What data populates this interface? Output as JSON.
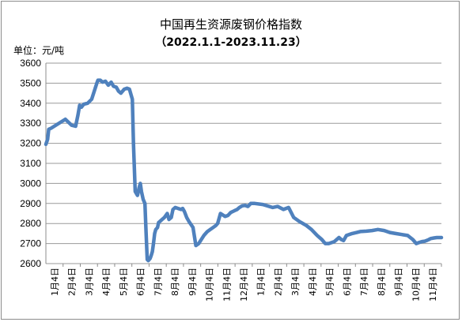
{
  "chart_data": {
    "type": "line",
    "title": "中国再生资源废钢价格指数",
    "subtitle": "（2022.1.1-2023.11.23）",
    "unit_label": "单位：元/吨",
    "ylim": [
      2600,
      3600
    ],
    "y_ticks": [
      "3600",
      "3500",
      "3400",
      "3300",
      "3200",
      "3100",
      "3000",
      "2900",
      "2800",
      "2700",
      "2600"
    ],
    "x_ticks": [
      "1月4日",
      "2月4日",
      "3月4日",
      "4月4日",
      "5月4日",
      "6月4日",
      "7月4日",
      "8月4日",
      "9月4日",
      "10月4日",
      "11月4日",
      "12月4日",
      "1月4日",
      "2月4日",
      "3月4日",
      "4月4日",
      "5月4日",
      "6月4日",
      "7月4日",
      "8月4日",
      "9月4日",
      "10月4日",
      "11月4日"
    ],
    "grid": true,
    "legend": "none",
    "line_color": "#4f81bd",
    "series": [
      {
        "x": [
          "2022-01-01",
          "2022-01-04",
          "2022-01-06",
          "2022-01-10",
          "2022-02-04",
          "2022-02-15",
          "2022-02-22",
          "2022-02-26",
          "2022-03-01",
          "2022-03-04",
          "2022-03-08",
          "2022-03-15",
          "2022-03-22",
          "2022-03-31",
          "2022-04-02",
          "2022-04-06",
          "2022-04-10",
          "2022-04-15",
          "2022-04-20",
          "2022-04-25",
          "2022-04-29",
          "2022-05-04",
          "2022-05-08",
          "2022-05-12",
          "2022-05-18",
          "2022-05-23",
          "2022-05-27",
          "2022-06-01",
          "2022-06-03",
          "2022-06-06",
          "2022-06-10",
          "2022-06-13",
          "2022-06-15",
          "2022-06-17",
          "2022-06-20",
          "2022-06-23",
          "2022-06-25",
          "2022-06-27",
          "2022-06-29",
          "2022-07-02",
          "2022-07-04",
          "2022-07-06",
          "2022-07-08",
          "2022-07-10",
          "2022-07-12",
          "2022-07-15",
          "2022-07-17",
          "2022-07-19",
          "2022-07-21",
          "2022-07-23",
          "2022-07-27",
          "2022-08-01",
          "2022-08-04",
          "2022-08-08",
          "2022-08-11",
          "2022-08-15",
          "2022-08-20",
          "2022-08-25",
          "2022-08-28",
          "2022-08-31",
          "2022-09-04",
          "2022-09-08",
          "2022-09-15",
          "2022-09-20",
          "2022-09-25",
          "2022-10-04",
          "2022-10-10",
          "2022-10-15",
          "2022-10-20",
          "2022-10-25",
          "2022-10-28",
          "2022-11-02",
          "2022-11-10",
          "2022-11-15",
          "2022-11-20",
          "2022-11-25",
          "2022-11-28",
          "2022-12-01",
          "2022-12-05",
          "2022-12-10",
          "2022-12-15",
          "2022-12-20",
          "2022-12-25",
          "2023-01-01",
          "2023-01-15",
          "2023-02-01",
          "2023-02-10",
          "2023-02-20",
          "2023-03-01",
          "2023-03-10",
          "2023-03-20",
          "2023-04-01",
          "2023-04-10",
          "2023-04-20",
          "2023-04-28",
          "2023-05-04",
          "2023-05-10",
          "2023-05-20",
          "2023-05-28",
          "2023-06-01",
          "2023-06-05",
          "2023-06-10",
          "2023-06-20",
          "2023-06-28",
          "2023-07-04",
          "2023-07-15",
          "2023-07-25",
          "2023-08-04",
          "2023-08-15",
          "2023-08-25",
          "2023-09-04",
          "2023-09-15",
          "2023-09-25",
          "2023-10-04",
          "2023-10-10",
          "2023-10-15",
          "2023-10-20",
          "2023-10-25",
          "2023-10-28",
          "2023-11-01",
          "2023-11-04",
          "2023-11-10",
          "2023-11-15",
          "2023-11-23"
        ],
        "values": [
          3195,
          3220,
          3270,
          3275,
          3320,
          3290,
          3285,
          3340,
          3390,
          3380,
          3395,
          3400,
          3420,
          3500,
          3515,
          3515,
          3505,
          3510,
          3490,
          3505,
          3485,
          3480,
          3460,
          3450,
          3470,
          3475,
          3470,
          3420,
          3200,
          2960,
          2940,
          2980,
          3000,
          2960,
          2920,
          2900,
          2760,
          2620,
          2615,
          2625,
          2640,
          2660,
          2700,
          2750,
          2770,
          2780,
          2805,
          2810,
          2815,
          2820,
          2830,
          2850,
          2820,
          2830,
          2870,
          2880,
          2875,
          2870,
          2875,
          2860,
          2830,
          2810,
          2780,
          2690,
          2700,
          2740,
          2760,
          2770,
          2780,
          2790,
          2800,
          2850,
          2835,
          2840,
          2855,
          2862,
          2866,
          2870,
          2880,
          2888,
          2890,
          2885,
          2900,
          2900,
          2895,
          2880,
          2885,
          2870,
          2880,
          2830,
          2810,
          2790,
          2770,
          2740,
          2720,
          2700,
          2700,
          2710,
          2730,
          2720,
          2715,
          2740,
          2750,
          2755,
          2760,
          2762,
          2765,
          2770,
          2765,
          2755,
          2750,
          2745,
          2740,
          2720,
          2700,
          2705,
          2710,
          2712,
          2715,
          2720,
          2725,
          2728,
          2730,
          2730
        ]
      }
    ]
  }
}
